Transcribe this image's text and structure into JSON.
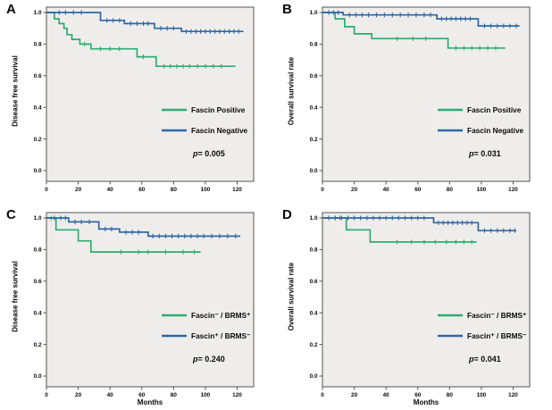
{
  "figure": {
    "background": "#ffffff"
  },
  "colors": {
    "green": "#2fac6e",
    "blue": "#2f68a5",
    "plot_bg": "#efedec",
    "frame": "#57524d",
    "text": "#0a0a0a"
  },
  "chart_data": [
    {
      "type": "line",
      "panel_label": "A",
      "ylabel": "Disease free survival",
      "xlabel": "",
      "xticks": [
        0,
        20,
        40,
        60,
        80,
        100,
        120
      ],
      "yticks": [
        1.0,
        0.8,
        0.6,
        0.4,
        0.2,
        0.0
      ],
      "xlim": [
        0,
        130
      ],
      "ylim": [
        0,
        1.0
      ],
      "legend_position": "lower-right",
      "grid": false,
      "p_label": "p",
      "p_value": "= 0.005",
      "series": [
        {
          "name": "Fascin Positive",
          "color": "green",
          "points": [
            [
              0,
              1
            ],
            [
              5,
              1
            ],
            [
              5,
              0.96
            ],
            [
              8,
              0.96
            ],
            [
              8,
              0.93
            ],
            [
              11,
              0.93
            ],
            [
              11,
              0.9
            ],
            [
              13,
              0.9
            ],
            [
              13,
              0.86
            ],
            [
              16,
              0.86
            ],
            [
              16,
              0.83
            ],
            [
              21,
              0.83
            ],
            [
              21,
              0.8
            ],
            [
              28,
              0.8
            ],
            [
              28,
              0.77
            ],
            [
              57,
              0.77
            ],
            [
              57,
              0.72
            ],
            [
              69,
              0.72
            ],
            [
              69,
              0.66
            ],
            [
              119,
              0.66
            ]
          ],
          "censors": [
            [
              24,
              0.8
            ],
            [
              34,
              0.77
            ],
            [
              40,
              0.77
            ],
            [
              46,
              0.77
            ],
            [
              61,
              0.72
            ],
            [
              74,
              0.66
            ],
            [
              78,
              0.66
            ],
            [
              82,
              0.66
            ],
            [
              86,
              0.66
            ],
            [
              90,
              0.66
            ],
            [
              95,
              0.66
            ],
            [
              100,
              0.66
            ],
            [
              105,
              0.66
            ],
            [
              110,
              0.66
            ]
          ]
        },
        {
          "name": "Fascin Negative",
          "color": "blue",
          "points": [
            [
              0,
              1
            ],
            [
              34,
              1
            ],
            [
              34,
              0.95
            ],
            [
              49,
              0.95
            ],
            [
              49,
              0.93
            ],
            [
              68,
              0.93
            ],
            [
              68,
              0.9
            ],
            [
              85,
              0.9
            ],
            [
              85,
              0.88
            ],
            [
              124,
              0.88
            ]
          ],
          "censors": [
            [
              8,
              1
            ],
            [
              12,
              1
            ],
            [
              17,
              1
            ],
            [
              22,
              1
            ],
            [
              38,
              0.95
            ],
            [
              42,
              0.95
            ],
            [
              46,
              0.95
            ],
            [
              53,
              0.93
            ],
            [
              57,
              0.93
            ],
            [
              61,
              0.93
            ],
            [
              64,
              0.93
            ],
            [
              72,
              0.9
            ],
            [
              76,
              0.9
            ],
            [
              80,
              0.9
            ],
            [
              88,
              0.88
            ],
            [
              91,
              0.88
            ],
            [
              94,
              0.88
            ],
            [
              97,
              0.88
            ],
            [
              100,
              0.88
            ],
            [
              103,
              0.88
            ],
            [
              106,
              0.88
            ],
            [
              109,
              0.88
            ],
            [
              112,
              0.88
            ],
            [
              115,
              0.88
            ],
            [
              118,
              0.88
            ],
            [
              121,
              0.88
            ]
          ]
        }
      ]
    },
    {
      "type": "line",
      "panel_label": "B",
      "ylabel": "Overall survival rate",
      "xlabel": "",
      "xticks": [
        0,
        20,
        40,
        60,
        80,
        100,
        120
      ],
      "yticks": [
        1.0,
        0.8,
        0.6,
        0.4,
        0.2,
        0.0
      ],
      "xlim": [
        0,
        130
      ],
      "ylim": [
        0,
        1.0
      ],
      "legend_position": "lower-right",
      "grid": false,
      "p_label": "p",
      "p_value": "= 0.031",
      "series": [
        {
          "name": "Fascin Positive",
          "color": "green",
          "points": [
            [
              0,
              1
            ],
            [
              8,
              1
            ],
            [
              8,
              0.96
            ],
            [
              14,
              0.96
            ],
            [
              14,
              0.91
            ],
            [
              20,
              0.91
            ],
            [
              20,
              0.865
            ],
            [
              31,
              0.865
            ],
            [
              31,
              0.835
            ],
            [
              79,
              0.835
            ],
            [
              79,
              0.775
            ],
            [
              115,
              0.775
            ]
          ],
          "censors": [
            [
              47,
              0.835
            ],
            [
              57,
              0.835
            ],
            [
              65,
              0.835
            ],
            [
              84,
              0.775
            ],
            [
              89,
              0.775
            ],
            [
              94,
              0.775
            ],
            [
              99,
              0.775
            ],
            [
              104,
              0.775
            ],
            [
              109,
              0.775
            ]
          ]
        },
        {
          "name": "Fascin Negative",
          "color": "blue",
          "points": [
            [
              0,
              1
            ],
            [
              13,
              1
            ],
            [
              13,
              0.985
            ],
            [
              72,
              0.985
            ],
            [
              72,
              0.96
            ],
            [
              98,
              0.96
            ],
            [
              98,
              0.915
            ],
            [
              124,
              0.915
            ]
          ],
          "censors": [
            [
              4,
              1
            ],
            [
              7,
              1
            ],
            [
              10,
              1
            ],
            [
              17,
              0.985
            ],
            [
              21,
              0.985
            ],
            [
              25,
              0.985
            ],
            [
              29,
              0.985
            ],
            [
              34,
              0.985
            ],
            [
              39,
              0.985
            ],
            [
              44,
              0.985
            ],
            [
              49,
              0.985
            ],
            [
              54,
              0.985
            ],
            [
              59,
              0.985
            ],
            [
              64,
              0.985
            ],
            [
              68,
              0.985
            ],
            [
              75,
              0.96
            ],
            [
              78,
              0.96
            ],
            [
              81,
              0.96
            ],
            [
              84,
              0.96
            ],
            [
              87,
              0.96
            ],
            [
              90,
              0.96
            ],
            [
              93,
              0.96
            ],
            [
              102,
              0.915
            ],
            [
              106,
              0.915
            ],
            [
              110,
              0.915
            ],
            [
              114,
              0.915
            ],
            [
              118,
              0.915
            ],
            [
              122,
              0.915
            ]
          ]
        }
      ]
    },
    {
      "type": "line",
      "panel_label": "C",
      "ylabel": "Disease free survival",
      "xlabel": "Months",
      "xticks": [
        0,
        20,
        40,
        60,
        80,
        100,
        120
      ],
      "yticks": [
        1.0,
        0.8,
        0.6,
        0.4,
        0.2,
        0.0
      ],
      "xlim": [
        0,
        130
      ],
      "ylim": [
        0,
        1.0
      ],
      "legend_position": "lower-right",
      "grid": false,
      "p_label": "p",
      "p_value": "= 0.240",
      "series": [
        {
          "name": "Fascin⁻ / BRMS⁺",
          "color": "green",
          "points": [
            [
              0,
              1
            ],
            [
              6,
              1
            ],
            [
              6,
              0.925
            ],
            [
              20,
              0.925
            ],
            [
              20,
              0.855
            ],
            [
              28,
              0.855
            ],
            [
              28,
              0.785
            ],
            [
              97,
              0.785
            ]
          ],
          "censors": [
            [
              3,
              1
            ],
            [
              47,
              0.785
            ],
            [
              58,
              0.785
            ],
            [
              64,
              0.785
            ],
            [
              75,
              0.785
            ],
            [
              86,
              0.785
            ],
            [
              93,
              0.785
            ]
          ]
        },
        {
          "name": "Fascin⁺ / BRMS⁻",
          "color": "blue",
          "points": [
            [
              0,
              1
            ],
            [
              14,
              1
            ],
            [
              14,
              0.975
            ],
            [
              33,
              0.975
            ],
            [
              33,
              0.93
            ],
            [
              46,
              0.93
            ],
            [
              46,
              0.91
            ],
            [
              64,
              0.91
            ],
            [
              64,
              0.885
            ],
            [
              122,
              0.885
            ]
          ],
          "censors": [
            [
              5,
              1
            ],
            [
              9,
              1
            ],
            [
              12,
              1
            ],
            [
              18,
              0.975
            ],
            [
              22,
              0.975
            ],
            [
              27,
              0.975
            ],
            [
              37,
              0.93
            ],
            [
              41,
              0.93
            ],
            [
              50,
              0.91
            ],
            [
              54,
              0.91
            ],
            [
              58,
              0.91
            ],
            [
              67,
              0.885
            ],
            [
              71,
              0.885
            ],
            [
              75,
              0.885
            ],
            [
              79,
              0.885
            ],
            [
              83,
              0.885
            ],
            [
              87,
              0.885
            ],
            [
              91,
              0.885
            ],
            [
              95,
              0.885
            ],
            [
              99,
              0.885
            ],
            [
              104,
              0.885
            ],
            [
              109,
              0.885
            ],
            [
              114,
              0.885
            ],
            [
              119,
              0.885
            ]
          ]
        }
      ]
    },
    {
      "type": "line",
      "panel_label": "D",
      "ylabel": "Overall survival rate",
      "xlabel": "Months",
      "xticks": [
        0,
        20,
        40,
        60,
        80,
        100,
        120
      ],
      "yticks": [
        1.0,
        0.8,
        0.6,
        0.4,
        0.2,
        0.0
      ],
      "xlim": [
        0,
        130
      ],
      "ylim": [
        0,
        1.0
      ],
      "legend_position": "lower-right",
      "grid": false,
      "p_label": "p",
      "p_value": "= 0.041",
      "series": [
        {
          "name": "Fascin⁻ / BRMS⁺",
          "color": "green",
          "points": [
            [
              0,
              1
            ],
            [
              15,
              1
            ],
            [
              15,
              0.925
            ],
            [
              30,
              0.925
            ],
            [
              30,
              0.848
            ],
            [
              97,
              0.848
            ]
          ],
          "censors": [
            [
              8,
              1
            ],
            [
              11,
              1
            ],
            [
              47,
              0.848
            ],
            [
              56,
              0.848
            ],
            [
              64,
              0.848
            ],
            [
              71,
              0.848
            ],
            [
              78,
              0.848
            ],
            [
              84,
              0.848
            ],
            [
              89,
              0.848
            ],
            [
              94,
              0.848
            ]
          ]
        },
        {
          "name": "Fascin⁺ / BRMS⁻",
          "color": "blue",
          "points": [
            [
              0,
              1
            ],
            [
              70,
              1
            ],
            [
              70,
              0.97
            ],
            [
              98,
              0.97
            ],
            [
              98,
              0.92
            ],
            [
              122,
              0.92
            ]
          ],
          "censors": [
            [
              4,
              1
            ],
            [
              8,
              1
            ],
            [
              12,
              1
            ],
            [
              16,
              1
            ],
            [
              20,
              1
            ],
            [
              24,
              1
            ],
            [
              28,
              1
            ],
            [
              32,
              1
            ],
            [
              36,
              1
            ],
            [
              40,
              1
            ],
            [
              44,
              1
            ],
            [
              48,
              1
            ],
            [
              52,
              1
            ],
            [
              56,
              1
            ],
            [
              60,
              1
            ],
            [
              64,
              1
            ],
            [
              73,
              0.97
            ],
            [
              76,
              0.97
            ],
            [
              79,
              0.97
            ],
            [
              82,
              0.97
            ],
            [
              85,
              0.97
            ],
            [
              88,
              0.97
            ],
            [
              91,
              0.97
            ],
            [
              94,
              0.97
            ],
            [
              102,
              0.92
            ],
            [
              106,
              0.92
            ],
            [
              110,
              0.92
            ],
            [
              114,
              0.92
            ],
            [
              118,
              0.92
            ],
            [
              121,
              0.92
            ]
          ]
        }
      ]
    }
  ]
}
